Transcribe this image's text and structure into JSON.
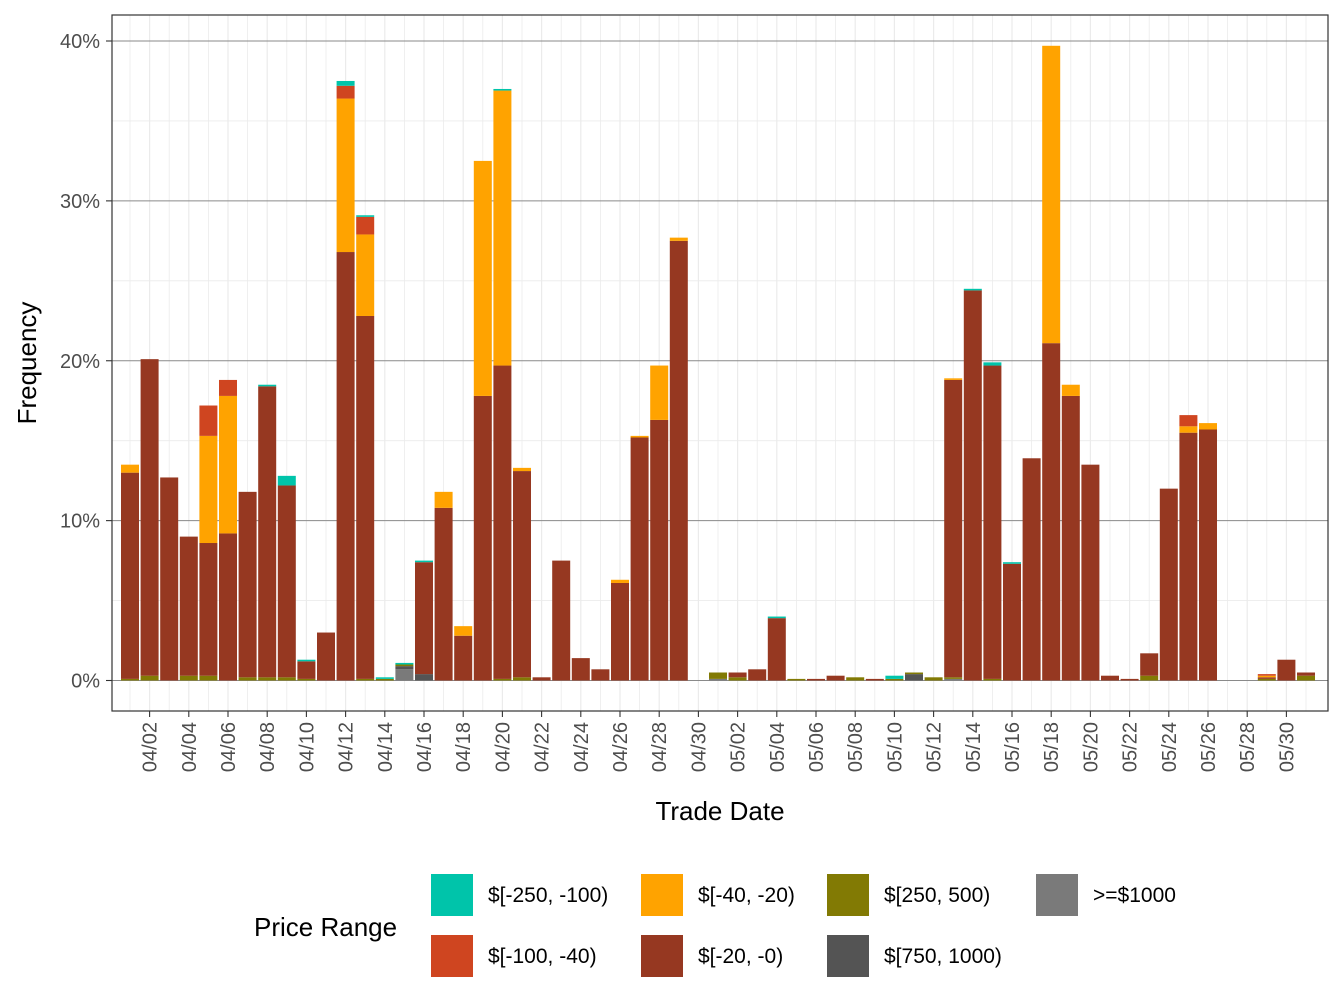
{
  "chart_data": {
    "type": "bar",
    "stacked": true,
    "title": "",
    "xlabel": "Trade Date",
    "ylabel": "Frequency",
    "ylim": [
      -0.025,
      0.42
    ],
    "yticks": [
      0,
      0.1,
      0.2,
      0.3,
      0.4
    ],
    "ytick_labels": [
      "0%",
      "10%",
      "20%",
      "30%",
      "40%"
    ],
    "xtick_labels": [
      "04/02",
      "04/04",
      "04/06",
      "04/08",
      "04/10",
      "04/12",
      "04/14",
      "04/16",
      "04/18",
      "04/20",
      "04/22",
      "04/24",
      "04/26",
      "04/28",
      "04/30",
      "05/02",
      "05/04",
      "05/06",
      "05/08",
      "05/10",
      "05/12",
      "05/14",
      "05/16",
      "05/18",
      "05/20",
      "05/22",
      "05/24",
      "05/26",
      "05/28",
      "05/30"
    ],
    "grid": true,
    "legend": {
      "title": "Price Range",
      "position": "bottom",
      "entries": [
        {
          "label": "$[-250, -100)",
          "color": "#00C4AA"
        },
        {
          "label": "$[-100, -40)",
          "color": "#CF4520"
        },
        {
          "label": "$[-40, -20)",
          "color": "#FFA300"
        },
        {
          "label": "$[-20, -0)",
          "color": "#963821"
        },
        {
          "label": "$[250, 500)",
          "color": "#827A04"
        },
        {
          "label": "$[750, 1000)",
          "color": "#545454"
        },
        {
          "label": ">=$1000",
          "color": "#7A7A7A"
        }
      ]
    },
    "categories": [
      "04/01",
      "04/02",
      "04/03",
      "04/04",
      "04/05",
      "04/06",
      "04/07",
      "04/08",
      "04/09",
      "04/10",
      "04/11",
      "04/12",
      "04/13",
      "04/14",
      "04/15",
      "04/16",
      "04/17",
      "04/18",
      "04/19",
      "04/20",
      "04/21",
      "04/22",
      "04/23",
      "04/24",
      "04/25",
      "04/26",
      "04/27",
      "04/28",
      "04/29",
      "04/30",
      "05/01",
      "05/02",
      "05/03",
      "05/04",
      "05/05",
      "05/06",
      "05/07",
      "05/08",
      "05/09",
      "05/10",
      "05/11",
      "05/12",
      "05/13",
      "05/14",
      "05/15",
      "05/16",
      "05/17",
      "05/18",
      "05/19",
      "05/20",
      "05/21",
      "05/22",
      "05/23",
      "05/24",
      "05/25",
      "05/26",
      "05/27",
      "05/28",
      "05/29",
      "05/30",
      "05/31"
    ],
    "series": [
      {
        "name": ">=$1000",
        "color": "#7A7A7A",
        "values": [
          0,
          0,
          0,
          0,
          0,
          0,
          0,
          0,
          0,
          0,
          0,
          0,
          0,
          0,
          0.007,
          0,
          0,
          0,
          0,
          0,
          0,
          0,
          0,
          0,
          0,
          0,
          0,
          0,
          0,
          0,
          0.001,
          0,
          0,
          0,
          0,
          0,
          0,
          0,
          0,
          0,
          0,
          0,
          0.001,
          0,
          0,
          0,
          0,
          0,
          0,
          0,
          0,
          0,
          0,
          0,
          0,
          0,
          0,
          0,
          0,
          0,
          0
        ]
      },
      {
        "name": "$[750, 1000)",
        "color": "#545454",
        "values": [
          0,
          0,
          0,
          0,
          0,
          0,
          0,
          0,
          0,
          0,
          0,
          0,
          0,
          0,
          0.002,
          0.004,
          0,
          0,
          0,
          0,
          0,
          0,
          0,
          0,
          0,
          0,
          0,
          0,
          0,
          0,
          0,
          0,
          0,
          0,
          0,
          0,
          0,
          0,
          0,
          0,
          0.004,
          0,
          0,
          0,
          0,
          0,
          0,
          0,
          0,
          0,
          0,
          0,
          0,
          0,
          0,
          0,
          0,
          0,
          0,
          0,
          0
        ]
      },
      {
        "name": "$[250, 500)",
        "color": "#827A04",
        "values": [
          0.001,
          0.003,
          0,
          0.003,
          0.003,
          0,
          0.002,
          0.002,
          0.002,
          0.001,
          0,
          0,
          0.001,
          0.001,
          0.001,
          0,
          0,
          0,
          0,
          0.001,
          0.002,
          0,
          0,
          0,
          0,
          0,
          0,
          0,
          0,
          0,
          0.004,
          0.002,
          0,
          0,
          0.001,
          0,
          0,
          0.002,
          0,
          0.001,
          0.001,
          0.002,
          0.001,
          0,
          0.001,
          0,
          0,
          0,
          0,
          0,
          0,
          0,
          0.003,
          0,
          0,
          0,
          0,
          0,
          0.001,
          0,
          0.003
        ]
      },
      {
        "name": "$[-20, -0)",
        "color": "#963821",
        "values": [
          0.129,
          0.198,
          0.127,
          0.087,
          0.083,
          0.092,
          0.116,
          0.182,
          0.12,
          0.011,
          0.03,
          0.268,
          0.227,
          0,
          0,
          0.07,
          0.108,
          0.028,
          0.178,
          0.196,
          0.129,
          0.002,
          0.075,
          0.014,
          0.007,
          0.061,
          0.152,
          0.163,
          0.275,
          0,
          0,
          0.003,
          0.007,
          0.039,
          0,
          0.001,
          0.003,
          0,
          0.001,
          0,
          0,
          0,
          0.186,
          0.244,
          0.196,
          0.073,
          0.139,
          0.211,
          0.178,
          0.135,
          0.003,
          0.001,
          0.014,
          0.12,
          0.155,
          0.157,
          0,
          0,
          0.001,
          0.013,
          0.002
        ]
      },
      {
        "name": "$[-40, -20)",
        "color": "#FFA300",
        "values": [
          0.005,
          0,
          0,
          0,
          0.067,
          0.086,
          0,
          0,
          0,
          0,
          0,
          0.096,
          0.051,
          0,
          0,
          0,
          0.01,
          0.006,
          0.147,
          0.172,
          0.002,
          0,
          0,
          0,
          0,
          0.002,
          0.001,
          0.034,
          0.002,
          0,
          0,
          0,
          0,
          0,
          0,
          0,
          0,
          0,
          0,
          0,
          0,
          0,
          0.001,
          0,
          0,
          0,
          0,
          0.186,
          0.007,
          0,
          0,
          0,
          0,
          0,
          0.004,
          0.004,
          0,
          0,
          0.001,
          0,
          0
        ]
      },
      {
        "name": "$[-100, -40)",
        "color": "#CF4520",
        "values": [
          0,
          0,
          0,
          0,
          0.019,
          0.01,
          0,
          0,
          0,
          0,
          0,
          0.008,
          0.011,
          0,
          0,
          0,
          0,
          0,
          0,
          0,
          0,
          0,
          0,
          0,
          0,
          0,
          0,
          0,
          0,
          0,
          0,
          0,
          0,
          0,
          0,
          0,
          0,
          0,
          0,
          0,
          0,
          0,
          0,
          0,
          0,
          0,
          0,
          0,
          0,
          0,
          0,
          0,
          0,
          0,
          0.007,
          0,
          0,
          0,
          0.001,
          0,
          0
        ]
      },
      {
        "name": "$[-250, -100)",
        "color": "#00C4AA",
        "values": [
          0,
          0,
          0,
          0,
          0,
          0,
          0,
          0.001,
          0.006,
          0.001,
          0,
          0.003,
          0.001,
          0.001,
          0.001,
          0.001,
          0,
          0,
          0,
          0.001,
          0,
          0,
          0,
          0,
          0,
          0,
          0,
          0,
          0,
          0,
          0,
          0,
          0,
          0.001,
          0,
          0,
          0,
          0,
          0,
          0.002,
          0,
          0,
          0,
          0.001,
          0.002,
          0.001,
          0,
          0,
          0,
          0,
          0,
          0,
          0,
          0,
          0,
          0,
          0,
          0,
          0,
          0,
          0
        ]
      }
    ]
  }
}
